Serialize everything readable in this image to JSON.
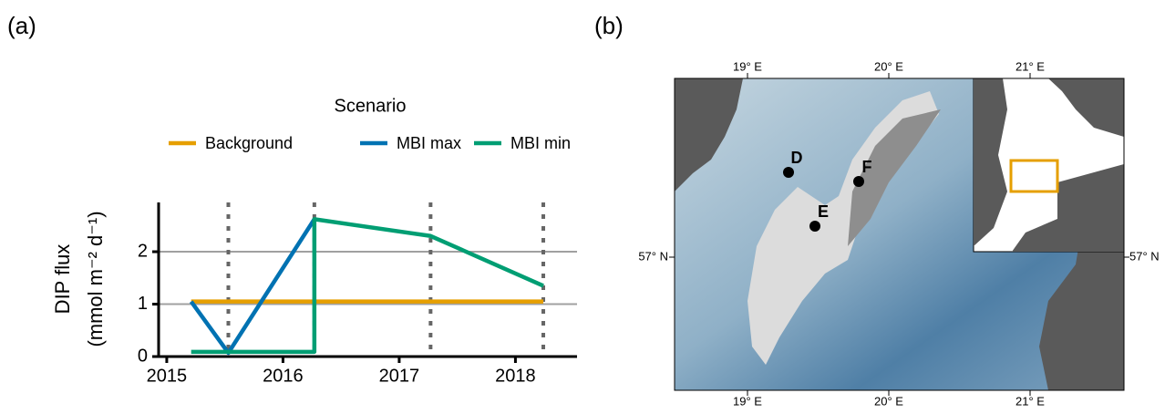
{
  "chart_data": {
    "type": "line",
    "panel_label": "(a)",
    "legend_title": "Scenario",
    "y_label": "DIP flux",
    "y_label_units": "(mmol m⁻² d⁻¹)",
    "xlim": [
      2014.93,
      2018.53
    ],
    "xticks": [
      2015,
      2016,
      2017,
      2018
    ],
    "ylim": [
      0,
      2.94
    ],
    "yticks": [
      0,
      1,
      2
    ],
    "grid": true,
    "vlines": [
      2015.53,
      2016.27,
      2017.27,
      2018.24
    ],
    "series": [
      {
        "name": "Background",
        "color": "#E69F00",
        "x": [
          2015.21,
          2018.24
        ],
        "values": [
          1.05,
          1.05
        ]
      },
      {
        "name": "MBI max",
        "color": "#0072B2",
        "x": [
          2015.21,
          2015.53,
          2016.27
        ],
        "values": [
          1.05,
          0.07,
          2.62
        ]
      },
      {
        "name": "MBI min",
        "color": "#009E73",
        "x": [
          2015.21,
          2016.27,
          2016.27,
          2017.27,
          2018.24
        ],
        "values": [
          0.09,
          0.09,
          2.62,
          2.3,
          1.35
        ]
      }
    ]
  },
  "map": {
    "panel_label": "(b)",
    "lon_labels": [
      "19° E",
      "20° E",
      "21° E"
    ],
    "lat_label": "57° N",
    "sites": [
      "D",
      "E",
      "F"
    ]
  }
}
